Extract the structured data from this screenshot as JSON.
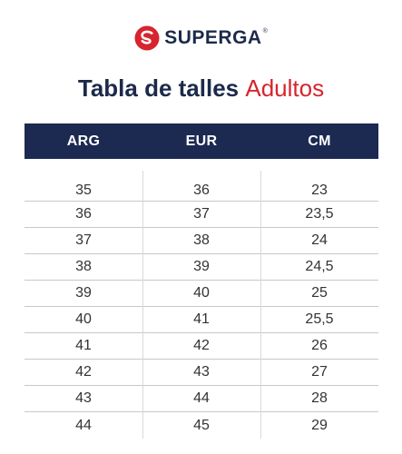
{
  "brand": {
    "name": "SUPERGA",
    "registered": "®",
    "logo_icon": "superga-s-logo-icon",
    "colors": {
      "navy": "#1c2a52",
      "red": "#d7242e"
    }
  },
  "title": {
    "main": "Tabla de talles",
    "accent": "Adultos"
  },
  "table": {
    "headers": [
      "ARG",
      "EUR",
      "CM"
    ],
    "rows": [
      [
        "35",
        "36",
        "23"
      ],
      [
        "36",
        "37",
        "23,5"
      ],
      [
        "37",
        "38",
        "24"
      ],
      [
        "38",
        "39",
        "24,5"
      ],
      [
        "39",
        "40",
        "25"
      ],
      [
        "40",
        "41",
        "25,5"
      ],
      [
        "41",
        "42",
        "26"
      ],
      [
        "42",
        "43",
        "27"
      ],
      [
        "43",
        "44",
        "28"
      ],
      [
        "44",
        "45",
        "29"
      ]
    ]
  }
}
